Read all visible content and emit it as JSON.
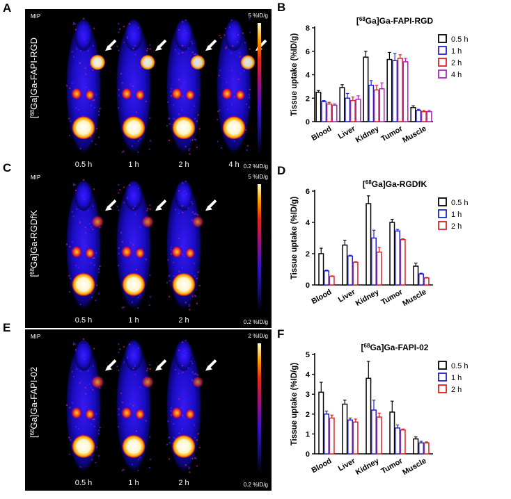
{
  "figure": {
    "panels": [
      {
        "letter": "A",
        "mip_label": "MIP",
        "vertical_label": "[68Ga]Ga-FAPI-RGD",
        "tracer_sup": "68",
        "tracer_pre": "[",
        "tracer_post": "Ga]Ga-FAPI-RGD",
        "scale_max": "5 %ID/g",
        "scale_min": "0.2 %ID/g",
        "timepoints": [
          "0.5 h",
          "1 h",
          "2 h",
          "4 h"
        ],
        "tumor_intensity": [
          0.9,
          0.85,
          0.8,
          0.8
        ]
      },
      {
        "letter": "C",
        "mip_label": "MIP",
        "vertical_label": "[68Ga]Ga-RGDfK",
        "tracer_sup": "68",
        "tracer_pre": "[",
        "tracer_post": "Ga]Ga-RGDfK",
        "scale_max": "5 %ID/g",
        "scale_min": "0.2 %ID/g",
        "timepoints": [
          "0.5 h",
          "1 h",
          "2 h"
        ],
        "tumor_intensity": [
          0.55,
          0.5,
          0.45
        ]
      },
      {
        "letter": "E",
        "mip_label": "MIP",
        "vertical_label": "[68Ga]Ga-FAPI-02",
        "tracer_sup": "68",
        "tracer_pre": "[",
        "tracer_post": "Ga]Ga-FAPI-02",
        "scale_max": "2 %ID/g",
        "scale_min": "0.2 %ID/g",
        "timepoints": [
          "0.5 h",
          "1 h",
          "2 h"
        ],
        "tumor_intensity": [
          0.6,
          0.5,
          0.4
        ]
      }
    ]
  },
  "chart_data": [
    {
      "letter": "B",
      "type": "bar",
      "title_pre": "[",
      "title_sup": "68",
      "title_post": "Ga]Ga-FAPI-RGD",
      "ylabel": "Tissue uptake (%ID/g)",
      "xlabel": "",
      "ylim": [
        0,
        8
      ],
      "yticks": [
        "0",
        "2",
        "4",
        "6",
        "8"
      ],
      "categories": [
        "Blood",
        "Liver",
        "Kidney",
        "Tumor",
        "Muscle"
      ],
      "legend_position": "top-right",
      "series": [
        {
          "name": "0.5 h",
          "color": "#000000",
          "values": [
            2.5,
            2.9,
            5.5,
            5.3,
            1.2
          ],
          "errors": [
            0.15,
            0.25,
            0.5,
            0.6,
            0.15
          ]
        },
        {
          "name": "1 h",
          "color": "#1f1fd6",
          "values": [
            1.7,
            2.0,
            3.1,
            5.2,
            0.95
          ],
          "errors": [
            0.1,
            0.4,
            0.4,
            0.6,
            0.1
          ]
        },
        {
          "name": "2 h",
          "color": "#e0201e",
          "values": [
            1.5,
            1.8,
            2.7,
            5.4,
            0.85
          ],
          "errors": [
            0.15,
            0.3,
            0.4,
            0.3,
            0.1
          ]
        },
        {
          "name": "4 h",
          "color": "#b020c8",
          "values": [
            1.4,
            1.9,
            2.8,
            5.1,
            0.85
          ],
          "errors": [
            0.1,
            0.3,
            0.5,
            0.3,
            0.1
          ]
        }
      ]
    },
    {
      "letter": "D",
      "type": "bar",
      "title_pre": "[",
      "title_sup": "68",
      "title_post": "Ga]Ga-RGDfK",
      "ylabel": "Tissue uptake (%ID/g)",
      "xlabel": "",
      "ylim": [
        0,
        6
      ],
      "yticks": [
        "0",
        "2",
        "4",
        "6"
      ],
      "categories": [
        "Blood",
        "Liver",
        "Kidney",
        "Tumor",
        "Muscle"
      ],
      "legend_position": "top-right",
      "series": [
        {
          "name": "0.5 h",
          "color": "#000000",
          "values": [
            2.0,
            2.55,
            5.2,
            4.0,
            1.2
          ],
          "errors": [
            0.35,
            0.3,
            0.5,
            0.2,
            0.2
          ]
        },
        {
          "name": "1 h",
          "color": "#1f1fd6",
          "values": [
            0.9,
            1.85,
            3.0,
            3.45,
            0.7
          ],
          "errors": [
            0.05,
            0.05,
            0.5,
            0.1,
            0.05
          ]
        },
        {
          "name": "2 h",
          "color": "#e0201e",
          "values": [
            0.55,
            1.45,
            2.1,
            2.9,
            0.45
          ],
          "errors": [
            0.03,
            0.03,
            0.3,
            0.05,
            0.03
          ]
        }
      ]
    },
    {
      "letter": "F",
      "type": "bar",
      "title_pre": "[",
      "title_sup": "68",
      "title_post": "Ga]Ga-FAPI-02",
      "ylabel": "Tissue uptake (%ID/g)",
      "xlabel": "",
      "ylim": [
        0,
        5
      ],
      "yticks": [
        "0",
        "1",
        "2",
        "3",
        "4",
        "5"
      ],
      "categories": [
        "Blood",
        "Liver",
        "Kidney",
        "Tumor",
        "Muscle"
      ],
      "legend_position": "top-right",
      "series": [
        {
          "name": "0.5 h",
          "color": "#000000",
          "values": [
            3.1,
            2.5,
            3.8,
            2.1,
            0.75
          ],
          "errors": [
            0.5,
            0.2,
            0.85,
            0.55,
            0.1
          ]
        },
        {
          "name": "1 h",
          "color": "#1f1fd6",
          "values": [
            2.0,
            1.7,
            2.2,
            1.3,
            0.55
          ],
          "errors": [
            0.15,
            0.1,
            0.5,
            0.15,
            0.08
          ]
        },
        {
          "name": "2 h",
          "color": "#e0201e",
          "values": [
            1.8,
            1.6,
            1.85,
            1.2,
            0.55
          ],
          "errors": [
            0.15,
            0.15,
            0.2,
            0.05,
            0.05
          ]
        }
      ]
    }
  ]
}
